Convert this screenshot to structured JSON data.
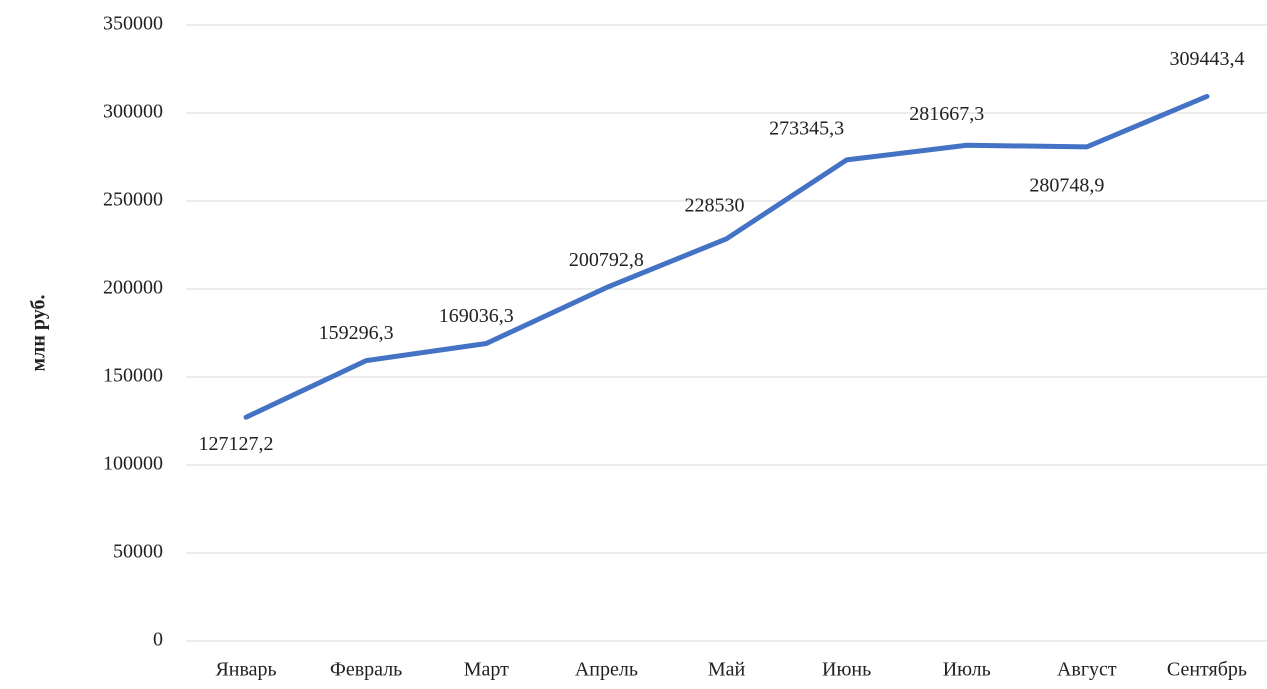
{
  "chart_data": {
    "type": "line",
    "y_label": "млн руб.",
    "categories": [
      "Январь",
      "Февраль",
      "Март",
      "Апрель",
      "Май",
      "Июнь",
      "Июль",
      "Август",
      "Сентябрь"
    ],
    "series": [
      {
        "color": "#4472c4",
        "values": [
          127127.2,
          159296.3,
          169036.3,
          200792.8,
          228530,
          273345.3,
          281667.3,
          280748.9,
          309443.4
        ],
        "value_labels": [
          "127127,2",
          "159296,3",
          "169036,3",
          "200792,8",
          "228530",
          "273345,3",
          "281667,3",
          "280748,9",
          "309443,4"
        ]
      }
    ],
    "ylim": [
      0,
      350000
    ],
    "yticks": [
      0,
      50000,
      100000,
      150000,
      200000,
      250000,
      300000,
      350000
    ],
    "grid": true
  }
}
